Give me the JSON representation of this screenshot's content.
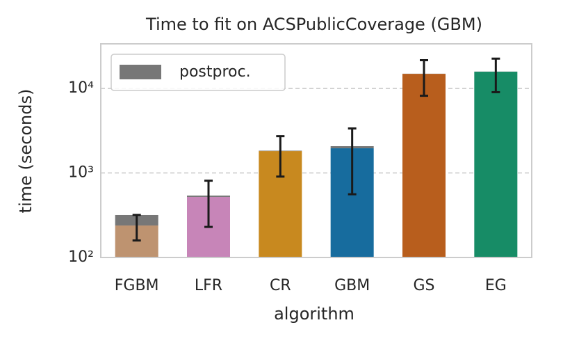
{
  "chart_data": {
    "type": "bar",
    "title": "Time to fit on ACSPublicCoverage (GBM)",
    "x_label": "algorithm",
    "y_label": "time (seconds)",
    "log_scale": true,
    "grid": true,
    "legend": "upper left",
    "categories": [
      "FGBM",
      "LFR",
      "CR",
      "GBM",
      "GS",
      "EG"
    ],
    "values": [
      239,
      520,
      1816,
      1960,
      14890,
      15780
    ],
    "colors": [
      "#be9370",
      "#c785b8",
      "#c8891f",
      "#176c9e",
      "#b85e1d",
      "#178c66"
    ],
    "errors": [
      80,
      290,
      910,
      1400,
      6700,
      6750
    ],
    "series": [
      {
        "name": "postproc.",
        "color": "#777777",
        "values": [
          79,
          20,
          20,
          115,
          50,
          50
        ]
      }
    ],
    "ylim": [
      100,
      33700
    ],
    "yticks": [
      {
        "value": 100,
        "label": "10²"
      },
      {
        "value": 1000,
        "label": "10³"
      },
      {
        "value": 10000,
        "label": "10⁴"
      }
    ]
  }
}
